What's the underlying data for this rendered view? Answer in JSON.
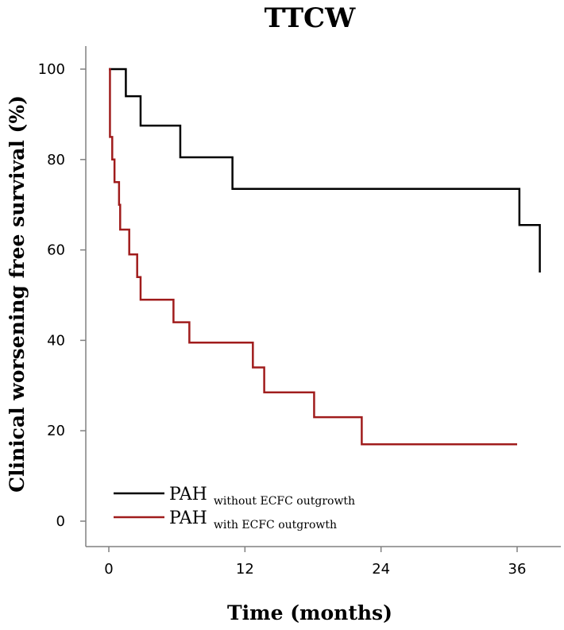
{
  "chart_data": {
    "type": "line",
    "step": true,
    "title": "TTCW",
    "xlabel": "Time (months)",
    "ylabel": "Clinical worsening free survival (%)",
    "xlim": [
      -1,
      40
    ],
    "ylim": [
      -5,
      105
    ],
    "xticks": [
      0,
      12,
      24,
      36
    ],
    "yticks": [
      0,
      20,
      40,
      60,
      80,
      100
    ],
    "grid": false,
    "legend_position": "bottom-left",
    "series": [
      {
        "name_main": "PAH",
        "name_sub": "without ECFC outgrowth",
        "color": "#000000",
        "points": [
          [
            0,
            100
          ],
          [
            1.5,
            94
          ],
          [
            2.8,
            87.5
          ],
          [
            6.3,
            80.5
          ],
          [
            10.9,
            73.5
          ],
          [
            36.2,
            65.5
          ],
          [
            38,
            55
          ]
        ]
      },
      {
        "name_main": "PAH",
        "name_sub": "with ECFC outgrowth",
        "color": "#a01c1c",
        "points": [
          [
            0,
            100
          ],
          [
            0.1,
            85
          ],
          [
            0.3,
            80
          ],
          [
            0.5,
            75
          ],
          [
            0.9,
            70
          ],
          [
            1.0,
            64.5
          ],
          [
            1.8,
            59
          ],
          [
            2.5,
            54
          ],
          [
            2.8,
            49
          ],
          [
            5.7,
            44
          ],
          [
            7.1,
            39.5
          ],
          [
            12.7,
            34
          ],
          [
            13.7,
            28.5
          ],
          [
            18.1,
            23
          ],
          [
            22.3,
            17
          ],
          [
            36,
            17
          ]
        ]
      }
    ]
  }
}
